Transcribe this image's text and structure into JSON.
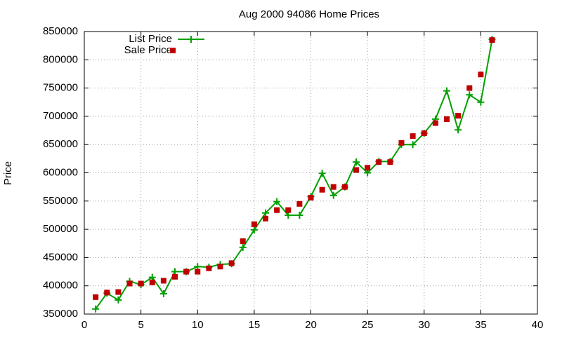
{
  "chart_data": {
    "type": "line",
    "title": "Aug 2000 94086 Home Prices",
    "y_label": "Price",
    "x": [
      1,
      2,
      3,
      4,
      5,
      6,
      7,
      8,
      9,
      10,
      11,
      12,
      13,
      14,
      15,
      16,
      17,
      18,
      19,
      20,
      21,
      22,
      23,
      24,
      25,
      26,
      27,
      28,
      29,
      30,
      31,
      32,
      33,
      34,
      35,
      36
    ],
    "series": [
      {
        "name": "List Price",
        "color": "#00a000",
        "mode": "lines+markers",
        "values": [
          359000,
          387000,
          375000,
          408000,
          402000,
          415000,
          386000,
          425000,
          425000,
          434000,
          433000,
          438000,
          439000,
          468000,
          499000,
          529000,
          549000,
          525000,
          525000,
          558000,
          599000,
          560000,
          575000,
          619000,
          600000,
          620000,
          620000,
          650000,
          650000,
          670000,
          695000,
          745000,
          676000,
          738000,
          725000,
          836000
        ]
      },
      {
        "name": "Sale Price",
        "color": "#c00000",
        "mode": "markers",
        "values": [
          380000,
          388000,
          389000,
          404000,
          404000,
          406000,
          409000,
          416000,
          425000,
          425000,
          431000,
          434000,
          440000,
          479000,
          509000,
          519000,
          534000,
          534000,
          545000,
          556000,
          570000,
          575000,
          575000,
          605000,
          609000,
          619000,
          619000,
          653000,
          665000,
          670000,
          688000,
          695000,
          701000,
          750000,
          774000,
          835000
        ]
      }
    ],
    "xlim": [
      0,
      40
    ],
    "xticks": [
      0,
      5,
      10,
      15,
      20,
      25,
      30,
      35,
      40
    ],
    "ylim": [
      350000,
      850000
    ],
    "yticks": [
      350000,
      400000,
      450000,
      500000,
      550000,
      600000,
      650000,
      700000,
      750000,
      800000,
      850000
    ],
    "grid": true,
    "legend": "top-left"
  }
}
